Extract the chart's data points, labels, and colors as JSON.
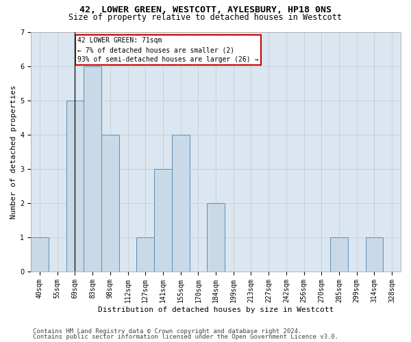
{
  "title1": "42, LOWER GREEN, WESTCOTT, AYLESBURY, HP18 0NS",
  "title2": "Size of property relative to detached houses in Westcott",
  "xlabel": "Distribution of detached houses by size in Westcott",
  "ylabel": "Number of detached properties",
  "categories": [
    "40sqm",
    "55sqm",
    "69sqm",
    "83sqm",
    "98sqm",
    "112sqm",
    "127sqm",
    "141sqm",
    "155sqm",
    "170sqm",
    "184sqm",
    "199sqm",
    "213sqm",
    "227sqm",
    "242sqm",
    "256sqm",
    "270sqm",
    "285sqm",
    "299sqm",
    "314sqm",
    "328sqm"
  ],
  "values": [
    1,
    0,
    5,
    6,
    4,
    0,
    1,
    3,
    4,
    0,
    2,
    0,
    0,
    0,
    0,
    0,
    0,
    1,
    0,
    1,
    0
  ],
  "bar_color": "#c9d9e8",
  "bar_edge_color": "#5b8db8",
  "subject_index": 2,
  "subject_line_color": "#1a1a1a",
  "annotation_line1": "42 LOWER GREEN: 71sqm",
  "annotation_line2": "← 7% of detached houses are smaller (2)",
  "annotation_line3": "93% of semi-detached houses are larger (26) →",
  "annotation_box_color": "#cc0000",
  "ylim": [
    0,
    7
  ],
  "yticks": [
    0,
    1,
    2,
    3,
    4,
    5,
    6,
    7
  ],
  "footer1": "Contains HM Land Registry data © Crown copyright and database right 2024.",
  "footer2": "Contains public sector information licensed under the Open Government Licence v3.0.",
  "bg_color": "#ffffff",
  "plot_bg_color": "#dce6f0",
  "grid_color": "#c0c8d0",
  "title1_fontsize": 9.5,
  "title2_fontsize": 8.5,
  "axis_label_fontsize": 8,
  "tick_fontsize": 7,
  "annotation_fontsize": 7,
  "footer_fontsize": 6.5
}
